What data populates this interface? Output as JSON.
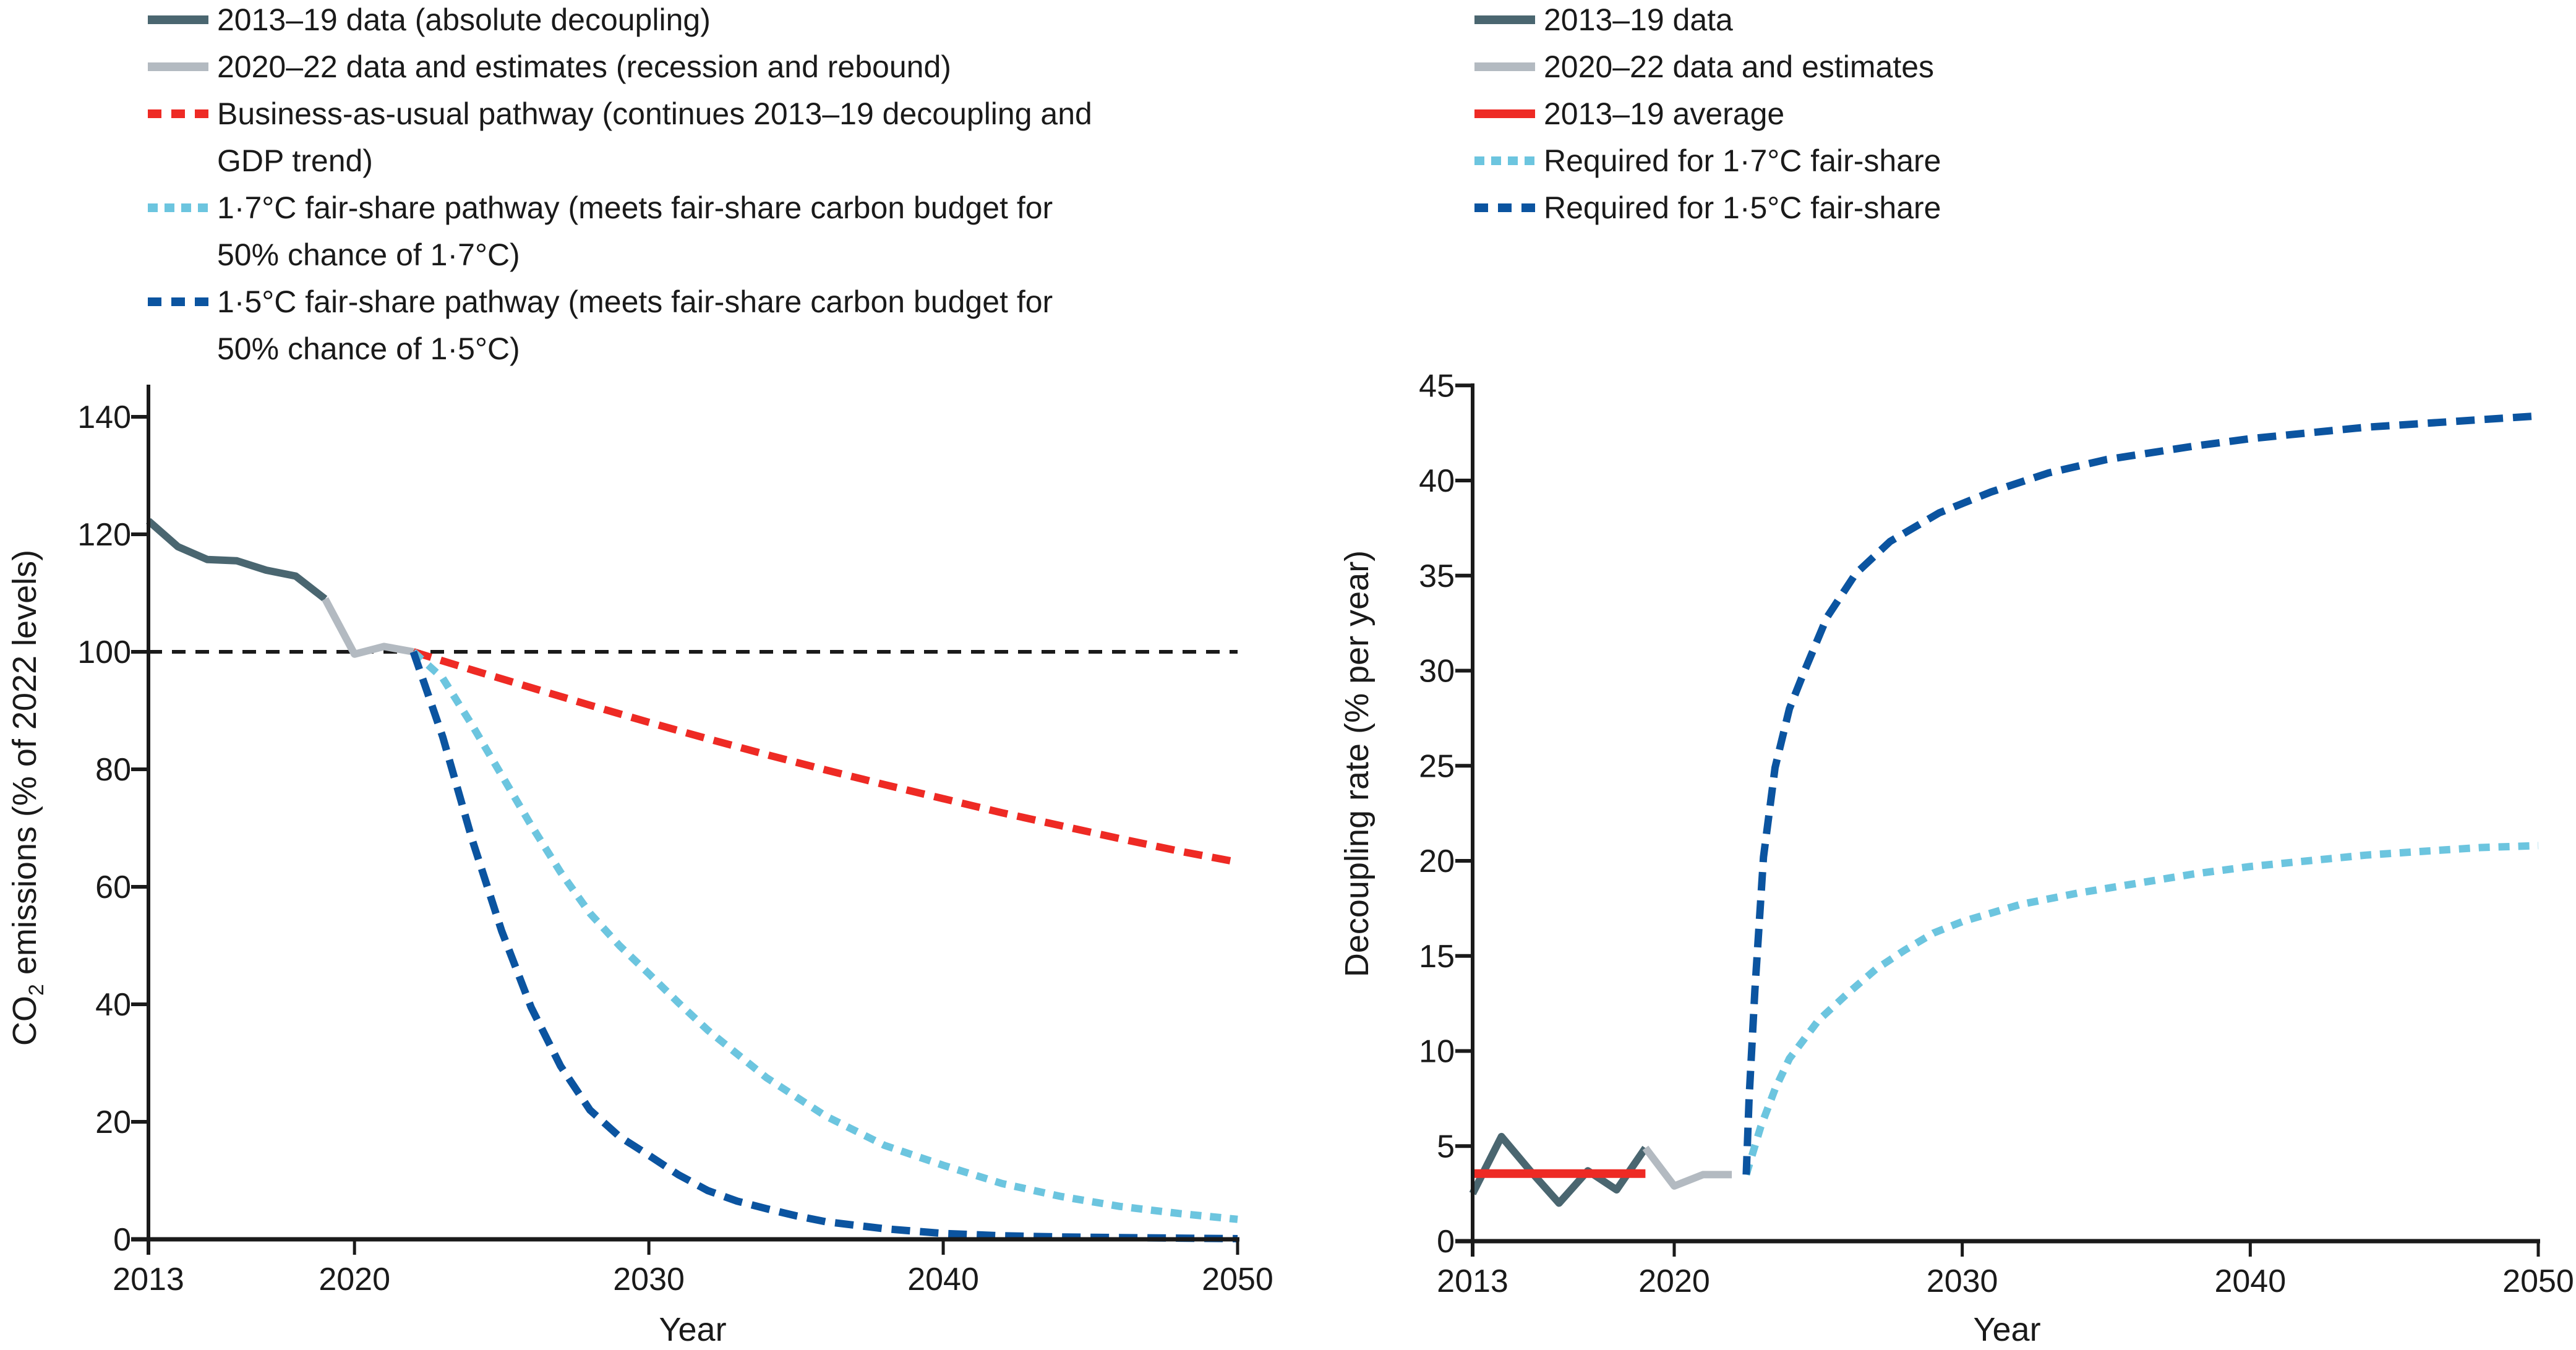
{
  "colors": {
    "data_2013_19": "#4a6670",
    "data_2020_22": "#b3bac1",
    "bau": "#ee2a24",
    "avg": "#ee2a24",
    "fair17": "#6cc5df",
    "fair15": "#0b54a0",
    "axis": "#1a1a1a",
    "reference": "#1a1a1a"
  },
  "chart_data": [
    {
      "id": "emissions",
      "type": "line",
      "title": "",
      "xlabel": "Year",
      "ylabel_main": "CO",
      "ylabel_sub": "2",
      "ylabel_rest": " emissions (% of 2022 levels)",
      "xlim": [
        2013,
        2050
      ],
      "ylim": [
        0,
        145
      ],
      "xticks": [
        2013,
        2020,
        2030,
        2040,
        2050
      ],
      "xtick_labels": [
        "2013",
        "2020",
        "2030",
        "2040",
        "2050"
      ],
      "yticks": [
        0,
        20,
        40,
        60,
        80,
        100,
        120,
        140
      ],
      "ytick_labels": [
        "0",
        "20",
        "40",
        "60",
        "80",
        "100",
        "120",
        "140"
      ],
      "grid": false,
      "legend_position": "top",
      "reference_line": {
        "y": 100,
        "style": "dashed"
      },
      "legend": [
        {
          "key": "data_2013_19",
          "style": "solid",
          "lines": [
            "2013–19 data (absolute decoupling)"
          ]
        },
        {
          "key": "data_2020_22",
          "style": "solid",
          "lines": [
            "2020–22 data and estimates (recession and rebound)"
          ]
        },
        {
          "key": "bau",
          "style": "dashed",
          "lines": [
            "Business-as-usual pathway (continues 2013–19 decoupling and",
            "GDP trend)"
          ]
        },
        {
          "key": "fair17",
          "style": "dotted",
          "lines": [
            "1·7°C fair-share pathway (meets fair-share carbon budget for",
            "50% chance of 1·7°C)"
          ]
        },
        {
          "key": "fair15",
          "style": "dashed",
          "lines": [
            "1·5°C fair-share pathway (meets fair-share carbon budget for",
            "50% chance of 1·5°C)"
          ]
        }
      ],
      "series": [
        {
          "name": "2013–19 data (absolute decoupling)",
          "key": "data_2013_19",
          "style": "solid",
          "x": [
            2013,
            2014,
            2015,
            2016,
            2017,
            2018,
            2019
          ],
          "y": [
            122.3,
            117.9,
            115.7,
            115.5,
            113.9,
            112.9,
            109.0
          ]
        },
        {
          "name": "2020–22 data and estimates (recession and rebound)",
          "key": "data_2020_22",
          "style": "solid",
          "x": [
            2019,
            2020,
            2021,
            2022
          ],
          "y": [
            109.0,
            99.6,
            100.9,
            100.0
          ]
        },
        {
          "name": "Business-as-usual pathway",
          "key": "bau",
          "style": "dashed",
          "x": [
            2022,
            2024,
            2026,
            2028,
            2030,
            2032,
            2034,
            2036,
            2038,
            2040,
            2042,
            2044,
            2046,
            2048,
            2050
          ],
          "y": [
            100,
            96.9,
            93.9,
            90.9,
            88.0,
            85.2,
            82.5,
            79.9,
            77.4,
            75.0,
            72.6,
            70.4,
            68.2,
            66.1,
            64.2
          ]
        },
        {
          "name": "1·7°C fair-share pathway",
          "key": "fair17",
          "style": "dotted",
          "x": [
            2022,
            2023,
            2024,
            2025,
            2026,
            2027,
            2028,
            2029,
            2030,
            2031,
            2032,
            2034,
            2036,
            2038,
            2040,
            2042,
            2044,
            2046,
            2048,
            2050
          ],
          "y": [
            100,
            95.5,
            87.5,
            79.0,
            70.5,
            62.5,
            55.5,
            50.0,
            45.2,
            40.3,
            35.6,
            27.5,
            21.0,
            16.0,
            12.6,
            9.5,
            7.3,
            5.6,
            4.4,
            3.4
          ]
        },
        {
          "name": "1·5°C fair-share pathway",
          "key": "fair15",
          "style": "dashed",
          "x": [
            2022,
            2023,
            2024,
            2025,
            2026,
            2027,
            2028,
            2029,
            2030,
            2031,
            2032,
            2033,
            2034,
            2035,
            2036,
            2038,
            2040,
            2042,
            2044,
            2046,
            2048,
            2050
          ],
          "y": [
            100,
            85.5,
            68.0,
            52.5,
            39.5,
            29.5,
            22.0,
            17.5,
            14.3,
            11.0,
            8.3,
            6.5,
            5.2,
            4.0,
            3.0,
            1.8,
            1.0,
            0.6,
            0.4,
            0.3,
            0.2,
            0.1
          ]
        }
      ]
    },
    {
      "id": "decoupling",
      "type": "line",
      "title": "",
      "xlabel": "Year",
      "ylabel": "Decoupling rate (% per year)",
      "xlim": [
        2013,
        2050
      ],
      "ylim": [
        0,
        45
      ],
      "xticks": [
        2013,
        2020,
        2030,
        2040,
        2050
      ],
      "xtick_labels": [
        "2013",
        "2020",
        "2030",
        "2040",
        "2050"
      ],
      "yticks": [
        0,
        5,
        10,
        15,
        20,
        25,
        30,
        35,
        40,
        45
      ],
      "ytick_labels": [
        "0",
        "5",
        "10",
        "15",
        "20",
        "25",
        "30",
        "35",
        "40",
        "45"
      ],
      "grid": false,
      "legend_position": "top",
      "legend": [
        {
          "key": "data_2013_19",
          "style": "solid",
          "lines": [
            "2013–19 data"
          ]
        },
        {
          "key": "data_2020_22",
          "style": "solid",
          "lines": [
            "2020–22 data and estimates"
          ]
        },
        {
          "key": "avg",
          "style": "solid",
          "lines": [
            "2013–19 average"
          ]
        },
        {
          "key": "fair17",
          "style": "dotted",
          "lines": [
            "Required for 1·7°C fair-share"
          ]
        },
        {
          "key": "fair15",
          "style": "dashed",
          "lines": [
            "Required for 1·5°C fair-share"
          ]
        }
      ],
      "series": [
        {
          "name": "2013–19 data",
          "key": "data_2013_19",
          "style": "solid",
          "x": [
            2013,
            2014,
            2015,
            2016,
            2017,
            2018,
            2019
          ],
          "y": [
            2.5,
            5.5,
            3.7,
            2.0,
            3.7,
            2.7,
            4.9
          ]
        },
        {
          "name": "2020–22 data and estimates",
          "key": "data_2020_22",
          "style": "solid",
          "x": [
            2019,
            2020,
            2021,
            2022
          ],
          "y": [
            4.9,
            2.9,
            3.5,
            3.5
          ]
        },
        {
          "name": "2013–19 average",
          "key": "avg",
          "style": "solid",
          "x": [
            2013,
            2019
          ],
          "y": [
            3.55,
            3.55
          ]
        },
        {
          "name": "Required for 1·7°C fair-share",
          "key": "fair17",
          "style": "dotted",
          "x": [
            2022.5,
            2023,
            2023.5,
            2024,
            2025,
            2026,
            2027,
            2028,
            2029,
            2030,
            2032,
            2034,
            2036,
            2038,
            2040,
            2042,
            2044,
            2046,
            2048,
            2050
          ],
          "y": [
            3.5,
            6.0,
            8.0,
            9.6,
            11.6,
            13.0,
            14.3,
            15.3,
            16.2,
            16.8,
            17.7,
            18.3,
            18.8,
            19.3,
            19.7,
            20.0,
            20.3,
            20.5,
            20.7,
            20.8
          ]
        },
        {
          "name": "Required for 1·5°C fair-share",
          "key": "fair15",
          "style": "dashed",
          "x": [
            2022.5,
            2022.6,
            2022.8,
            2023.1,
            2023.5,
            2024,
            2024.5,
            2025.3,
            2026.3,
            2027.5,
            2029.2,
            2031,
            2033,
            2035,
            2038,
            2040,
            2042,
            2044,
            2046,
            2048,
            2050
          ],
          "y": [
            3.5,
            7.5,
            13.2,
            20.2,
            24.9,
            28.0,
            29.9,
            32.8,
            35.1,
            36.8,
            38.3,
            39.4,
            40.4,
            41.1,
            41.8,
            42.2,
            42.5,
            42.8,
            43.0,
            43.2,
            43.4
          ]
        }
      ]
    }
  ]
}
